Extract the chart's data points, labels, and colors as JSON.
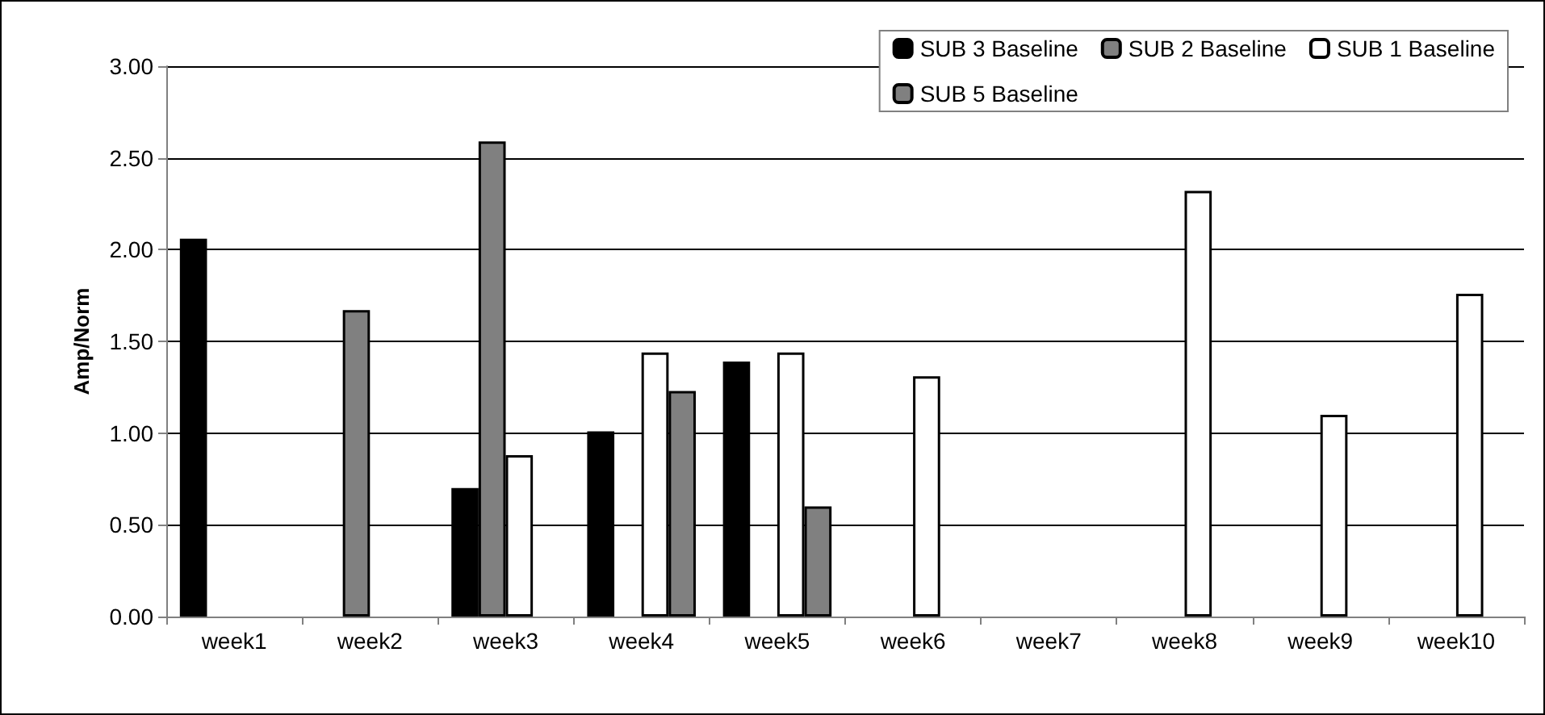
{
  "chart_data": {
    "type": "bar",
    "ylabel": "Amp/Norm",
    "categories": [
      "week1",
      "week2",
      "week3",
      "week4",
      "week5",
      "week6",
      "week7",
      "week8",
      "week9",
      "week10"
    ],
    "series": [
      {
        "name": "SUB 3 Baseline",
        "color": "#000000",
        "values": [
          2.06,
          null,
          0.7,
          1.01,
          1.39,
          null,
          null,
          null,
          null,
          null
        ]
      },
      {
        "name": "SUB 2 Baseline",
        "color": "#808080",
        "values": [
          null,
          1.67,
          2.59,
          null,
          null,
          null,
          null,
          null,
          null,
          null
        ]
      },
      {
        "name": "SUB 1 Baseline",
        "color": "#ffffff",
        "values": [
          null,
          null,
          0.88,
          1.44,
          1.44,
          1.31,
          null,
          2.32,
          1.1,
          1.76
        ]
      },
      {
        "name": "SUB 5 Baseline",
        "color": "#808080",
        "values": [
          null,
          null,
          null,
          1.23,
          0.6,
          null,
          null,
          null,
          null,
          null
        ]
      }
    ],
    "ylim": [
      0,
      3
    ],
    "yticks": [
      {
        "value": 0,
        "label": "0.00"
      },
      {
        "value": 0.5,
        "label": "0.50"
      },
      {
        "value": 1,
        "label": "1.00"
      },
      {
        "value": 1.5,
        "label": "1.50"
      },
      {
        "value": 2,
        "label": "2.00"
      },
      {
        "value": 2.5,
        "label": "2.50"
      },
      {
        "value": 3,
        "label": "3.00"
      }
    ],
    "grid": "y",
    "legend": "top right"
  }
}
